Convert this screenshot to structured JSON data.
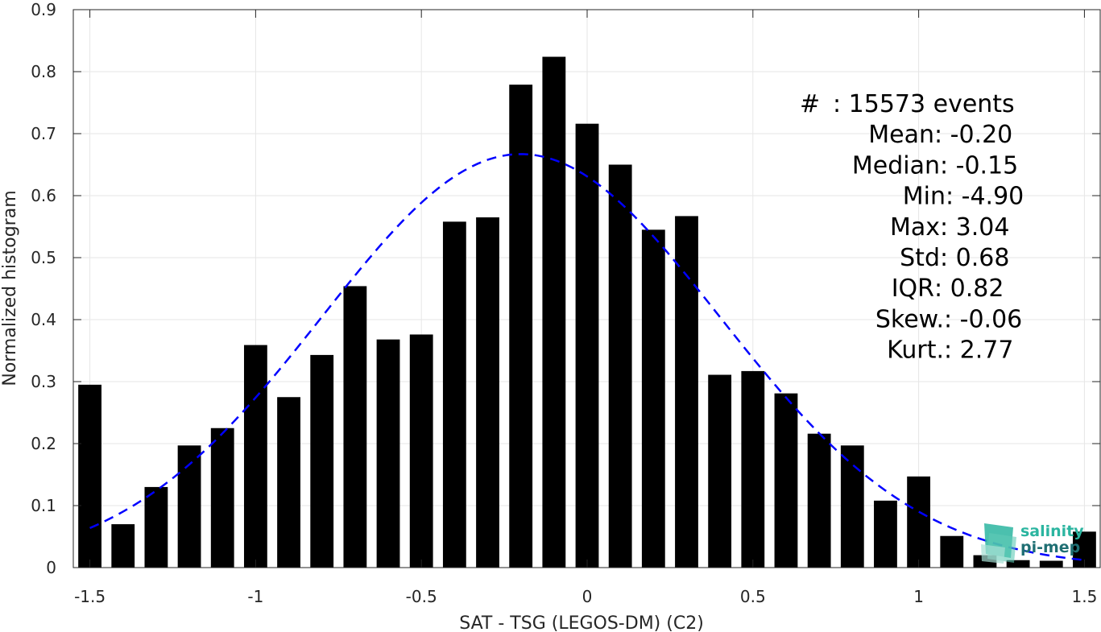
{
  "chart_data": {
    "type": "bar",
    "title": "",
    "xlabel": "SAT - TSG (LEGOS-DM) (C2)",
    "ylabel": "Normalized histogram",
    "xlim": [
      -1.55,
      1.55
    ],
    "ylim": [
      0,
      0.9
    ],
    "grid": true,
    "x_ticks": [
      -1.5,
      -1,
      -0.5,
      0,
      0.5,
      1,
      1.5
    ],
    "x_tick_labels": [
      "-1.5",
      "-1",
      "-0.5",
      "0",
      "0.5",
      "1",
      "1.5"
    ],
    "y_ticks": [
      0,
      0.1,
      0.2,
      0.3,
      0.4,
      0.5,
      0.6,
      0.7,
      0.8,
      0.9
    ],
    "y_tick_labels": [
      "0",
      "0.1",
      "0.2",
      "0.3",
      "0.4",
      "0.5",
      "0.6",
      "0.7",
      "0.8",
      "0.9"
    ],
    "bin_width": 0.1,
    "bar_fraction": 0.7,
    "x": [
      -1.5,
      -1.4,
      -1.3,
      -1.2,
      -1.1,
      -1.0,
      -0.9,
      -0.8,
      -0.7,
      -0.6,
      -0.5,
      -0.4,
      -0.3,
      -0.2,
      -0.1,
      0.0,
      0.1,
      0.2,
      0.3,
      0.4,
      0.5,
      0.6,
      0.7,
      0.8,
      0.9,
      1.0,
      1.1,
      1.2,
      1.3,
      1.4,
      1.5
    ],
    "values": [
      0.295,
      0.07,
      0.13,
      0.197,
      0.225,
      0.359,
      0.275,
      0.343,
      0.454,
      0.368,
      0.376,
      0.558,
      0.565,
      0.779,
      0.824,
      0.716,
      0.65,
      0.545,
      0.567,
      0.311,
      0.317,
      0.281,
      0.216,
      0.197,
      0.108,
      0.147,
      0.051,
      0.02,
      0.012,
      0.011,
      0.058
    ],
    "bar_color": "#000000",
    "fit_curve": {
      "style": "dashed",
      "color": "#0000ff",
      "mean": -0.2,
      "std": 0.6,
      "peak": 0.667,
      "x_range": [
        -1.5,
        1.5
      ]
    },
    "annotations": [
      {
        "label": "#  ",
        "value": ": 15573 events"
      },
      {
        "label": "Mean ",
        "value": ": -0.20"
      },
      {
        "label": "Median ",
        "value": ": -0.15"
      },
      {
        "label": "Min ",
        "value": ": -4.90"
      },
      {
        "label": "Max ",
        "value": ": 3.04"
      },
      {
        "label": "Std ",
        "value": ": 0.68"
      },
      {
        "label": "IQR ",
        "value": ": 0.82"
      },
      {
        "label": "Skew. ",
        "value": ": -0.06"
      },
      {
        "label": "Kurt. ",
        "value": ": 2.77"
      }
    ]
  },
  "logo": {
    "line1": "salinity",
    "line2": "pi-mep",
    "color_line1": "#2bb5a0",
    "color_line2": "#1f6f73"
  }
}
